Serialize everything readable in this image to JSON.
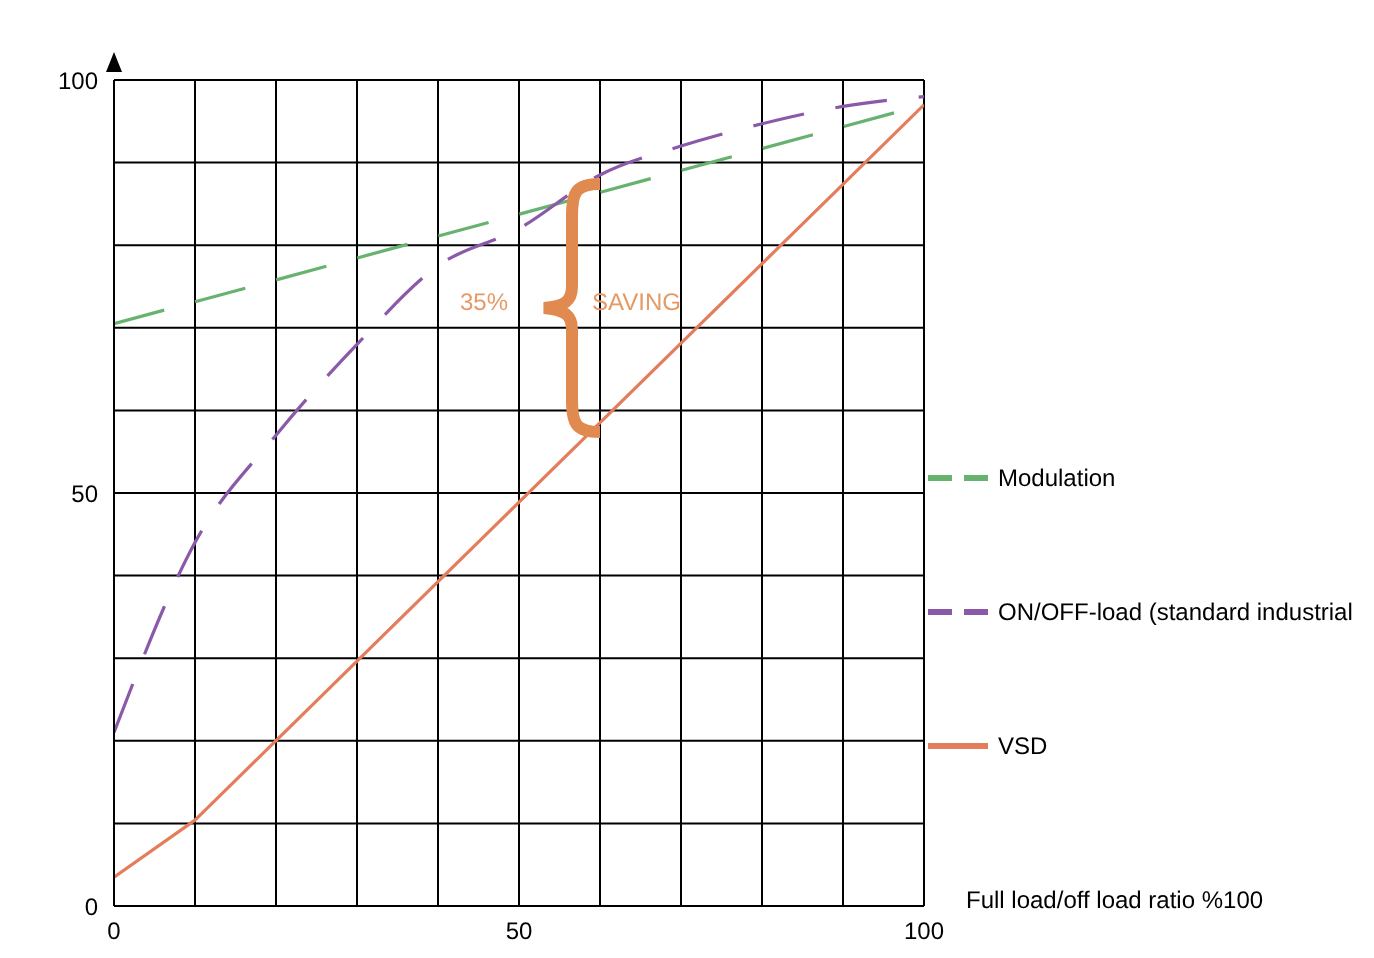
{
  "chart_data": {
    "type": "line",
    "xlabel": "Full load/off load ratio %100",
    "xlim": [
      0,
      100
    ],
    "ylim": [
      0,
      100
    ],
    "xticks": [
      0,
      {
        "value": 10,
        "label": null
      },
      {
        "value": 20,
        "label": null
      },
      {
        "value": 30,
        "label": null
      },
      {
        "value": 40,
        "label": null
      },
      50,
      {
        "value": 60,
        "label": null
      },
      {
        "value": 70,
        "label": null
      },
      {
        "value": 80,
        "label": null
      },
      {
        "value": 90,
        "label": null
      },
      100
    ],
    "yticks": [
      0,
      {
        "value": 10,
        "label": null
      },
      {
        "value": 20,
        "label": null
      },
      {
        "value": 30,
        "label": null
      },
      {
        "value": 40,
        "label": null
      },
      50,
      {
        "value": 60,
        "label": null
      },
      {
        "value": 70,
        "label": null
      },
      {
        "value": 80,
        "label": null
      },
      {
        "value": 90,
        "label": null
      },
      100
    ],
    "grid": true,
    "legend": "right",
    "series": [
      {
        "name": "Modulation",
        "color": "#66b26e",
        "line_style": "dashed",
        "x": [
          0,
          100
        ],
        "values": [
          70.5,
          97
        ]
      },
      {
        "name": "ON/OFF-load (standard industrial",
        "color": "#8a5aa8",
        "line_style": "dashed",
        "x": [
          0,
          10,
          20,
          30,
          40,
          50,
          60,
          70,
          80,
          90,
          100
        ],
        "values": [
          21,
          44,
          57,
          68,
          77.5,
          82,
          88.5,
          92,
          94.7,
          96.8,
          98
        ]
      },
      {
        "name": "VSD",
        "color": "#e47d5c",
        "line_style": "solid",
        "x": [
          0,
          10,
          100
        ],
        "values": [
          3.5,
          10.4,
          97
        ]
      }
    ],
    "annotations": [
      "35%",
      "SAVING"
    ]
  }
}
